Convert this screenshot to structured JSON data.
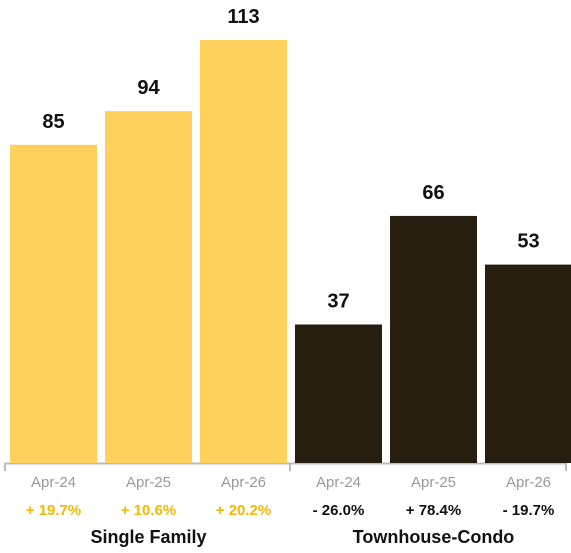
{
  "chart_data": {
    "type": "bar",
    "colors": {
      "single_family": "#FDD15C",
      "townhouse_condo": "#261E0E",
      "baseline": "#bbbbbb",
      "pct_single": "#F5B800",
      "pct_townhouse": "#111111"
    },
    "ylim": [
      0,
      113
    ],
    "groups": [
      {
        "name": "Single Family",
        "bars": [
          {
            "category": "Apr-24",
            "value": 85,
            "label": "85",
            "change": "+ 19.7%"
          },
          {
            "category": "Apr-25",
            "value": 94,
            "label": "94",
            "change": "+ 10.6%"
          },
          {
            "category": "Apr-26",
            "value": 113,
            "label": "113",
            "change": "+ 20.2%"
          }
        ]
      },
      {
        "name": "Townhouse-Condo",
        "bars": [
          {
            "category": "Apr-24",
            "value": 37,
            "label": "37",
            "change": "- 26.0%"
          },
          {
            "category": "Apr-25",
            "value": 66,
            "label": "66",
            "change": "+ 78.4%"
          },
          {
            "category": "Apr-26",
            "value": 53,
            "label": "53",
            "change": "- 19.7%"
          }
        ]
      }
    ]
  }
}
